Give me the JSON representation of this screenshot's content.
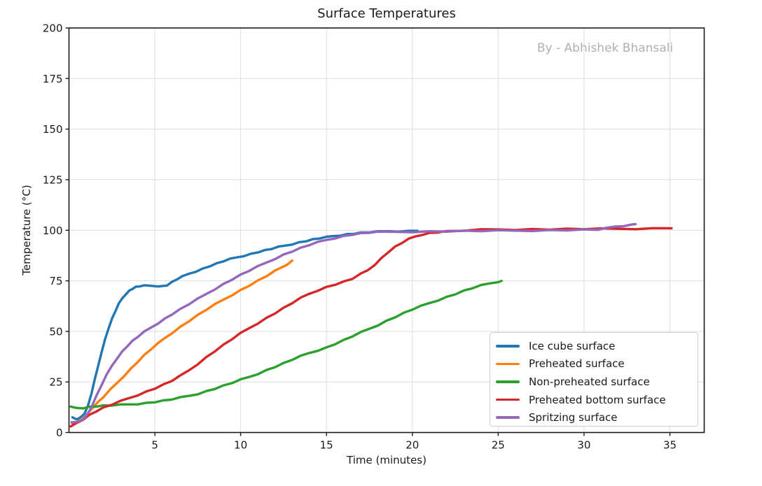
{
  "chart_data": {
    "type": "line",
    "title": "Surface Temperatures",
    "watermark": "By - Abhishek Bhansali",
    "xlabel": "Time (minutes)",
    "ylabel": "Temperature (°C)",
    "xlim": [
      0,
      37.0
    ],
    "ylim": [
      0,
      200
    ],
    "xticks": [
      5,
      10,
      15,
      20,
      25,
      30,
      35
    ],
    "yticks": [
      0,
      25,
      50,
      75,
      100,
      125,
      150,
      175,
      200
    ],
    "grid": true,
    "legend_position": "lower-right-inside",
    "axis_color": "#1a1a1a",
    "grid_color": "#dedede",
    "series": [
      {
        "name": "Ice cube surface",
        "color": "#1f77b4",
        "points": [
          [
            0.2,
            7.5
          ],
          [
            0.35,
            6.8
          ],
          [
            0.5,
            6.9
          ],
          [
            0.7,
            7.6
          ],
          [
            0.9,
            9.5
          ],
          [
            1.1,
            13
          ],
          [
            1.3,
            19
          ],
          [
            1.5,
            26
          ],
          [
            1.7,
            33
          ],
          [
            1.9,
            40
          ],
          [
            2.1,
            46
          ],
          [
            2.3,
            51.5
          ],
          [
            2.5,
            56
          ],
          [
            2.7,
            60
          ],
          [
            2.9,
            63.5
          ],
          [
            3.1,
            66.3
          ],
          [
            3.3,
            68.5
          ],
          [
            3.5,
            70
          ],
          [
            3.7,
            71.2
          ],
          [
            3.9,
            71.9
          ],
          [
            4.1,
            72.3
          ],
          [
            4.4,
            72.5
          ],
          [
            4.8,
            72.5
          ],
          [
            5.2,
            72.5
          ],
          [
            5.5,
            72.4
          ],
          [
            5.7,
            72.8
          ],
          [
            6.0,
            74.3
          ],
          [
            6.3,
            75.8
          ],
          [
            6.6,
            77
          ],
          [
            7.0,
            78.5
          ],
          [
            7.4,
            79.8
          ],
          [
            7.8,
            81
          ],
          [
            8.2,
            82.3
          ],
          [
            8.6,
            83.5
          ],
          [
            9.0,
            84.7
          ],
          [
            9.4,
            85.7
          ],
          [
            9.8,
            86.6
          ],
          [
            10.2,
            87.5
          ],
          [
            10.6,
            88.3
          ],
          [
            11.0,
            89.2
          ],
          [
            11.4,
            90
          ],
          [
            11.8,
            90.8
          ],
          [
            12.2,
            91.6
          ],
          [
            12.6,
            92.4
          ],
          [
            13.0,
            93.2
          ],
          [
            13.4,
            94
          ],
          [
            13.8,
            94.7
          ],
          [
            14.2,
            95.4
          ],
          [
            14.6,
            96
          ],
          [
            15.0,
            96.5
          ],
          [
            15.4,
            97.1
          ],
          [
            15.8,
            97.6
          ],
          [
            16.2,
            98
          ],
          [
            16.6,
            98.4
          ],
          [
            17.0,
            98.7
          ],
          [
            17.5,
            99
          ],
          [
            18.0,
            99.2
          ],
          [
            18.6,
            99.5
          ],
          [
            19.2,
            99.6
          ],
          [
            19.8,
            99.6
          ],
          [
            20.3,
            99.7
          ]
        ]
      },
      {
        "name": "Preheated surface",
        "color": "#ff7f0e",
        "points": [
          [
            0.2,
            4.5
          ],
          [
            0.5,
            5.5
          ],
          [
            0.8,
            7
          ],
          [
            1.1,
            9.5
          ],
          [
            1.4,
            12.5
          ],
          [
            1.7,
            15
          ],
          [
            2.0,
            17.5
          ],
          [
            2.4,
            21
          ],
          [
            2.8,
            24.5
          ],
          [
            3.2,
            28
          ],
          [
            3.6,
            31.5
          ],
          [
            4.0,
            35
          ],
          [
            4.4,
            38.3
          ],
          [
            4.8,
            41.3
          ],
          [
            5.2,
            44
          ],
          [
            5.6,
            46.8
          ],
          [
            6.0,
            49.3
          ],
          [
            6.5,
            52.3
          ],
          [
            7.0,
            55.2
          ],
          [
            7.5,
            58
          ],
          [
            8.0,
            60.7
          ],
          [
            8.5,
            63.2
          ],
          [
            9.0,
            65.7
          ],
          [
            9.5,
            68.1
          ],
          [
            10.0,
            70.4
          ],
          [
            10.5,
            72.7
          ],
          [
            11.0,
            75
          ],
          [
            11.5,
            77.3
          ],
          [
            12.0,
            79.8
          ],
          [
            12.4,
            81.7
          ],
          [
            12.7,
            83.2
          ],
          [
            13.0,
            85
          ]
        ]
      },
      {
        "name": "Non-preheated surface",
        "color": "#2ca02c",
        "points": [
          [
            0.1,
            12.8
          ],
          [
            0.4,
            12.2
          ],
          [
            0.8,
            12.2
          ],
          [
            1.2,
            12.7
          ],
          [
            1.6,
            13
          ],
          [
            2.0,
            13.2
          ],
          [
            2.5,
            13.4
          ],
          [
            3.0,
            13.6
          ],
          [
            3.5,
            13.9
          ],
          [
            4.0,
            14.2
          ],
          [
            4.5,
            14.6
          ],
          [
            5.0,
            15.1
          ],
          [
            5.5,
            15.7
          ],
          [
            6.0,
            16.4
          ],
          [
            6.5,
            17.2
          ],
          [
            7.0,
            18.1
          ],
          [
            7.5,
            19.2
          ],
          [
            8.0,
            20.4
          ],
          [
            8.5,
            21.7
          ],
          [
            9.0,
            23.1
          ],
          [
            9.5,
            24.5
          ],
          [
            10.0,
            26
          ],
          [
            10.5,
            27.5
          ],
          [
            11.0,
            29.1
          ],
          [
            11.5,
            30.8
          ],
          [
            12.0,
            32.5
          ],
          [
            12.5,
            34.2
          ],
          [
            13.0,
            36
          ],
          [
            13.5,
            37.7
          ],
          [
            14.0,
            39.3
          ],
          [
            14.5,
            40.7
          ],
          [
            15.0,
            42
          ],
          [
            15.5,
            43.8
          ],
          [
            16.0,
            45.6
          ],
          [
            16.5,
            47.5
          ],
          [
            17.0,
            49.4
          ],
          [
            17.5,
            51.3
          ],
          [
            18.0,
            53.2
          ],
          [
            18.5,
            55.2
          ],
          [
            19.0,
            57.1
          ],
          [
            19.5,
            59
          ],
          [
            20.0,
            60.8
          ],
          [
            20.5,
            62.4
          ],
          [
            21.0,
            64
          ],
          [
            21.5,
            65.5
          ],
          [
            22.0,
            67
          ],
          [
            22.5,
            68.5
          ],
          [
            23.0,
            70
          ],
          [
            23.5,
            71.4
          ],
          [
            24.0,
            72.6
          ],
          [
            24.5,
            73.7
          ],
          [
            25.0,
            74.6
          ],
          [
            25.2,
            75
          ]
        ]
      },
      {
        "name": "Preheated bottom surface",
        "color": "#d62728",
        "points": [
          [
            0.1,
            3
          ],
          [
            0.4,
            4.5
          ],
          [
            0.8,
            6.5
          ],
          [
            1.2,
            8.7
          ],
          [
            1.6,
            10.6
          ],
          [
            2.0,
            12.2
          ],
          [
            2.5,
            13.8
          ],
          [
            3.0,
            15.4
          ],
          [
            3.5,
            17
          ],
          [
            4.0,
            18.6
          ],
          [
            4.5,
            20.2
          ],
          [
            5.0,
            21.8
          ],
          [
            5.5,
            23.6
          ],
          [
            6.0,
            25.6
          ],
          [
            6.5,
            28
          ],
          [
            7.0,
            30.8
          ],
          [
            7.5,
            34
          ],
          [
            8.0,
            37.2
          ],
          [
            8.5,
            40.3
          ],
          [
            9.0,
            43.3
          ],
          [
            9.5,
            46.2
          ],
          [
            10.0,
            49
          ],
          [
            10.5,
            51.6
          ],
          [
            11.0,
            54.1
          ],
          [
            11.5,
            56.6
          ],
          [
            12.0,
            59
          ],
          [
            12.5,
            61.5
          ],
          [
            13.0,
            64
          ],
          [
            13.5,
            66.4
          ],
          [
            14.0,
            68.6
          ],
          [
            14.5,
            70.4
          ],
          [
            15.0,
            71.9
          ],
          [
            15.5,
            73.2
          ],
          [
            16.0,
            74.5
          ],
          [
            16.5,
            76
          ],
          [
            17.0,
            78.3
          ],
          [
            17.4,
            80.2
          ],
          [
            17.8,
            83
          ],
          [
            18.2,
            86.2
          ],
          [
            18.6,
            89.3
          ],
          [
            19.0,
            91.8
          ],
          [
            19.4,
            93.8
          ],
          [
            19.8,
            95.6
          ],
          [
            20.2,
            97.0
          ],
          [
            20.6,
            98.0
          ],
          [
            21.0,
            98.6
          ],
          [
            21.5,
            99.1
          ],
          [
            22.0,
            99.4
          ],
          [
            23.0,
            99.8
          ],
          [
            24.0,
            100.2
          ],
          [
            25.0,
            100.4
          ],
          [
            26.0,
            100.4
          ],
          [
            27.0,
            100.5
          ],
          [
            28.0,
            100.5
          ],
          [
            29.0,
            100.6
          ],
          [
            30.0,
            100.6
          ],
          [
            31.0,
            100.6
          ],
          [
            32.0,
            100.7
          ],
          [
            33.0,
            100.8
          ],
          [
            34.0,
            100.9
          ],
          [
            35.1,
            101
          ]
        ]
      },
      {
        "name": "Spritzing surface",
        "color": "#9467bd",
        "points": [
          [
            0.15,
            5
          ],
          [
            0.4,
            5.2
          ],
          [
            0.7,
            6
          ],
          [
            1.0,
            8
          ],
          [
            1.3,
            12.5
          ],
          [
            1.6,
            18
          ],
          [
            1.9,
            23.5
          ],
          [
            2.2,
            28.5
          ],
          [
            2.5,
            33
          ],
          [
            2.8,
            36.8
          ],
          [
            3.1,
            40
          ],
          [
            3.4,
            42.8
          ],
          [
            3.7,
            45.2
          ],
          [
            4.0,
            47.3
          ],
          [
            4.4,
            49.8
          ],
          [
            4.8,
            52
          ],
          [
            5.2,
            54.2
          ],
          [
            5.6,
            56.4
          ],
          [
            6.0,
            58.5
          ],
          [
            6.5,
            61
          ],
          [
            7.0,
            63.5
          ],
          [
            7.5,
            66
          ],
          [
            8.0,
            68.5
          ],
          [
            8.5,
            71
          ],
          [
            9.0,
            73.4
          ],
          [
            9.5,
            75.7
          ],
          [
            10.0,
            77.9
          ],
          [
            10.5,
            80
          ],
          [
            11.0,
            82
          ],
          [
            11.5,
            84
          ],
          [
            12.0,
            86
          ],
          [
            12.5,
            87.9
          ],
          [
            13.0,
            89.6
          ],
          [
            13.5,
            91.2
          ],
          [
            14.0,
            92.7
          ],
          [
            14.5,
            94
          ],
          [
            15.0,
            95.2
          ],
          [
            15.5,
            96.2
          ],
          [
            16.0,
            97.1
          ],
          [
            16.5,
            97.9
          ],
          [
            17.0,
            98.4
          ],
          [
            17.5,
            98.8
          ],
          [
            18.0,
            99.0
          ],
          [
            19.0,
            99.2
          ],
          [
            20.0,
            99.3
          ],
          [
            21.0,
            99.4
          ],
          [
            22.0,
            99.5
          ],
          [
            23.0,
            99.6
          ],
          [
            24.0,
            99.6
          ],
          [
            25.0,
            99.7
          ],
          [
            26.0,
            99.8
          ],
          [
            27.0,
            99.9
          ],
          [
            28.0,
            100.0
          ],
          [
            29.0,
            100.1
          ],
          [
            30.0,
            100.2
          ],
          [
            30.8,
            100.3
          ],
          [
            31.3,
            100.9
          ],
          [
            31.8,
            101.8
          ],
          [
            32.3,
            102.3
          ],
          [
            32.8,
            102.8
          ],
          [
            33.0,
            103
          ]
        ]
      }
    ]
  }
}
